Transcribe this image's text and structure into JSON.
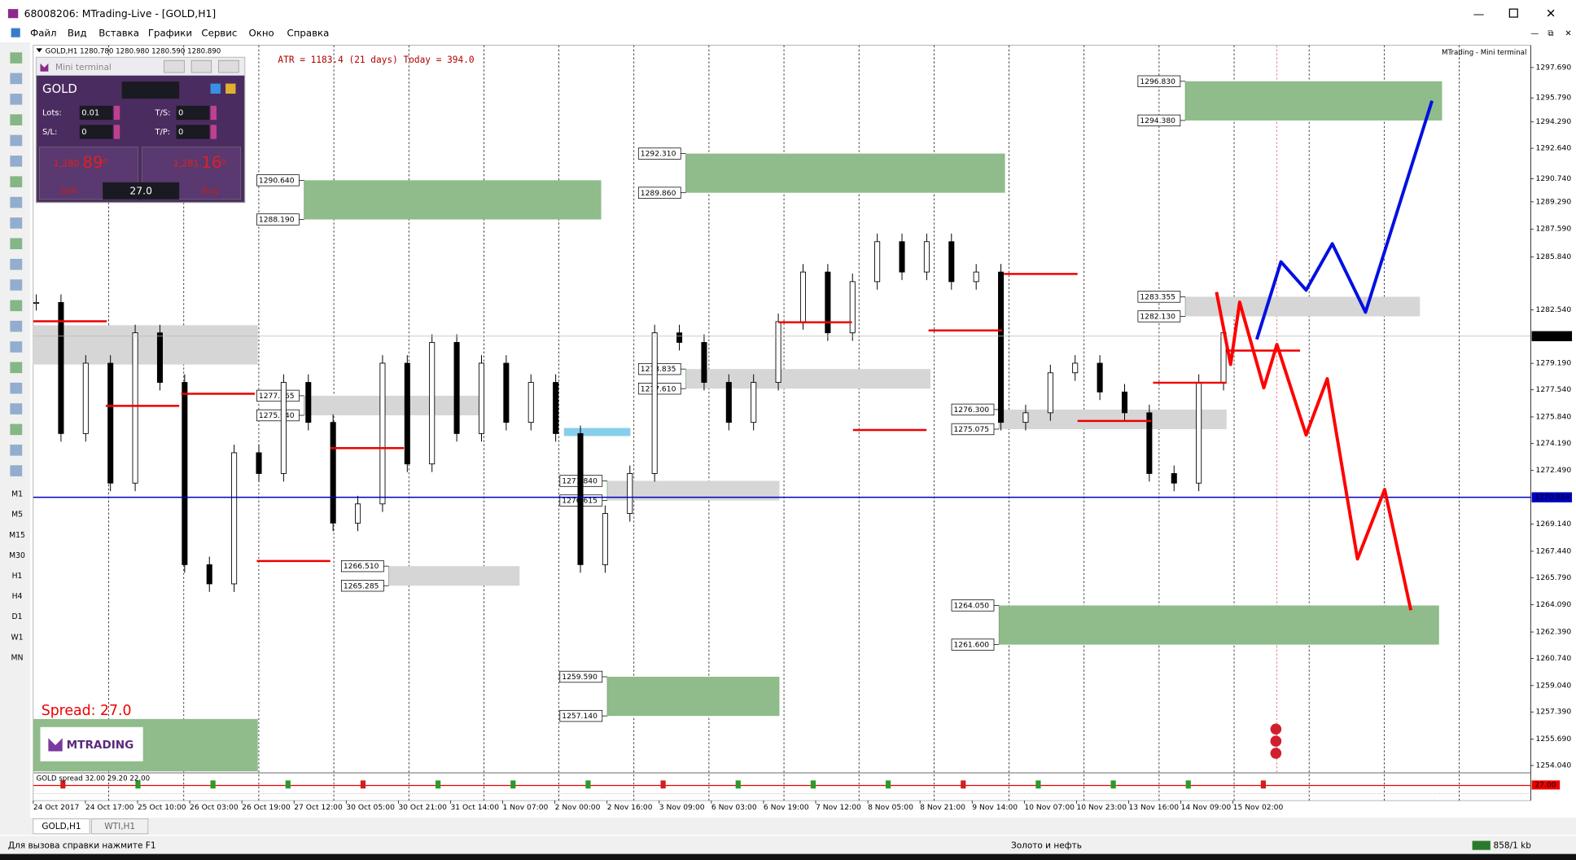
{
  "window": {
    "title": "68008206: MTrading-Live - [GOLD,H1]"
  },
  "menu": [
    "Файл",
    "Вид",
    "Вставка",
    "Графики",
    "Сервис",
    "Окно",
    "Справка"
  ],
  "timeframes": [
    "M1",
    "M5",
    "M15",
    "M30",
    "H1",
    "H4",
    "D1",
    "W1",
    "MN"
  ],
  "chart": {
    "header": "GOLD,H1  1280.780 1280.980 1280.590 1280.890",
    "atr": "ATR = 1183.4   (21 days)   Today = 394.0",
    "panel_title": "MTrading - Mini terminal",
    "ylim": [
      1253.61,
      1299.08
    ],
    "yticks": [
      {
        "value": 1297.69,
        "label": "1297.690"
      },
      {
        "value": 1295.79,
        "label": "1295.790"
      },
      {
        "value": 1294.29,
        "label": "1294.290"
      },
      {
        "value": 1292.64,
        "label": "1292.640"
      },
      {
        "value": 1290.74,
        "label": "1290.740"
      },
      {
        "value": 1289.29,
        "label": "1289.290"
      },
      {
        "value": 1287.59,
        "label": "1287.590"
      },
      {
        "value": 1285.84,
        "label": "1285.840"
      },
      {
        "value": 1282.54,
        "label": "1282.540"
      },
      {
        "value": 1279.19,
        "label": "1279.190"
      },
      {
        "value": 1277.54,
        "label": "1277.540"
      },
      {
        "value": 1275.84,
        "label": "1275.840"
      },
      {
        "value": 1274.19,
        "label": "1274.190"
      },
      {
        "value": 1272.49,
        "label": "1272.490"
      },
      {
        "value": 1269.14,
        "label": "1269.140"
      },
      {
        "value": 1267.44,
        "label": "1267.440"
      },
      {
        "value": 1265.79,
        "label": "1265.790"
      },
      {
        "value": 1264.09,
        "label": "1264.090"
      },
      {
        "value": 1262.39,
        "label": "1262.390"
      },
      {
        "value": 1260.74,
        "label": "1260.740"
      },
      {
        "value": 1259.04,
        "label": "1259.040"
      },
      {
        "value": 1257.39,
        "label": "1257.390"
      },
      {
        "value": 1255.69,
        "label": "1255.690"
      },
      {
        "value": 1254.04,
        "label": "1254.040"
      }
    ],
    "current_price": {
      "value": 1280.89,
      "label": "1280.890"
    },
    "line_price": {
      "value": 1270.814,
      "label": "1270.814"
    },
    "time_labels": [
      "24 Oct 2017",
      "24 Oct 17:00",
      "25 Oct 10:00",
      "26 Oct 03:00",
      "26 Oct 19:00",
      "27 Oct 12:00",
      "30 Oct 05:00",
      "30 Oct 21:00",
      "31 Oct 14:00",
      "1 Nov 07:00",
      "2 Nov 00:00",
      "2 Nov 16:00",
      "3 Nov 09:00",
      "6 Nov 03:00",
      "6 Nov 19:00",
      "7 Nov 12:00",
      "8 Nov 05:00",
      "8 Nov 21:00",
      "9 Nov 14:00",
      "10 Nov 07:00",
      "10 Nov 23:00",
      "13 Nov 16:00",
      "14 Nov 09:00",
      "15 Nov 02:00"
    ],
    "closes": [
      1283.0,
      1274.8,
      1279.2,
      1271.7,
      1281.1,
      1278.0,
      1266.6,
      1265.4,
      1273.6,
      1272.3,
      1278.0,
      1275.5,
      1269.2,
      1270.4,
      1279.2,
      1272.9,
      1280.5,
      1274.8,
      1279.2,
      1275.5,
      1278.0,
      1274.8,
      1266.6,
      1269.8,
      1272.3,
      1281.1,
      1280.5,
      1278.0,
      1275.5,
      1278.0,
      1281.8,
      1284.9,
      1281.1,
      1284.3,
      1286.8,
      1284.9,
      1286.8,
      1284.3,
      1284.9,
      1275.5,
      1276.1,
      1278.6,
      1279.2,
      1277.4,
      1276.1,
      1272.3,
      1271.7,
      1278.0,
      1281.1
    ],
    "zones": [
      {
        "high": {
          "value": 1290.64,
          "label": "1290.640"
        },
        "low": {
          "value": 1288.19,
          "label": "1288.190"
        },
        "color": "#8fbc8a"
      },
      {
        "high": {
          "value": 1292.31,
          "label": "1292.310"
        },
        "low": {
          "value": 1289.86,
          "label": "1289.860"
        },
        "color": "#8fbc8a"
      },
      {
        "high": {
          "value": 1296.83,
          "label": "1296.830"
        },
        "low": {
          "value": 1294.38,
          "label": "1294.380"
        },
        "color": "#8fbc8a"
      },
      {
        "high": {
          "value": 1283.355,
          "label": "1283.355"
        },
        "low": {
          "value": 1282.13,
          "label": "1282.130"
        },
        "color": "#d6d6d6"
      },
      {
        "high": {
          "value": 1277.165,
          "label": "1277.165"
        },
        "low": {
          "value": 1275.94,
          "label": "1275.940"
        },
        "color": "#d6d6d6"
      },
      {
        "high": {
          "value": 1278.835,
          "label": "1278.835"
        },
        "low": {
          "value": 1277.61,
          "label": "1277.610"
        },
        "color": "#d6d6d6"
      },
      {
        "high": {
          "value": 1276.3,
          "label": "1276.300"
        },
        "low": {
          "value": 1275.075,
          "label": "1275.075"
        },
        "color": "#d6d6d6"
      },
      {
        "high": {
          "value": 1271.84,
          "label": "1271.840"
        },
        "low": {
          "value": 1270.615,
          "label": "1270.615"
        },
        "color": "#d6d6d6"
      },
      {
        "high": {
          "value": 1266.51,
          "label": "1266.510"
        },
        "low": {
          "value": 1265.285,
          "label": "1265.285"
        },
        "color": "#d6d6d6"
      },
      {
        "high": {
          "value": 1264.05,
          "label": "1264.050"
        },
        "low": {
          "value": 1261.6,
          "label": "1261.600"
        },
        "color": "#8fbc8a"
      },
      {
        "high": {
          "value": 1259.59,
          "label": "1259.590"
        },
        "low": {
          "value": 1257.14,
          "label": "1257.140"
        },
        "color": "#8fbc8a"
      }
    ],
    "levels": [
      1281.82,
      1276.53,
      1277.29,
      1266.83,
      1273.89,
      1281.76,
      1275.02,
      1281.25,
      1284.78,
      1275.59,
      1277.98,
      1279.99
    ],
    "forecast_red": [
      1283.65,
      1279.12,
      1283.02,
      1277.66,
      1280.37,
      1274.71,
      1278.23,
      1266.96,
      1271.3,
      1263.75
    ],
    "forecast_blue": [
      1280.69,
      1285.54,
      1283.77,
      1286.67,
      1282.39,
      1295.61
    ],
    "spread_text": "Spread:  27.0",
    "logo": "MTRADING"
  },
  "mini_terminal": {
    "title": "Mini terminal",
    "symbol": "GOLD",
    "lots_label": "Lots:",
    "lots": "0.01",
    "ts_label": "T/S:",
    "ts": "0",
    "sl_label": "S/L:",
    "sl": "0",
    "tp_label": "T/P:",
    "tp": "0",
    "sell_big": "1,280.",
    "sell_pips": "89",
    "sell_frac": "0",
    "buy_big": "1,281.",
    "buy_pips": "16",
    "buy_frac": "0",
    "sell": "Sell",
    "buy": "Buy",
    "spread": "27.0"
  },
  "indicator": {
    "label": "GOLD spread 32.00 29.20 22.00",
    "value": "27.00"
  },
  "tabs": [
    "GOLD,H1",
    "WTI,H1"
  ],
  "status": {
    "help": "Для вызова справки нажмите F1",
    "profile": "Золото и нефть",
    "traffic": "858/1 kb"
  }
}
